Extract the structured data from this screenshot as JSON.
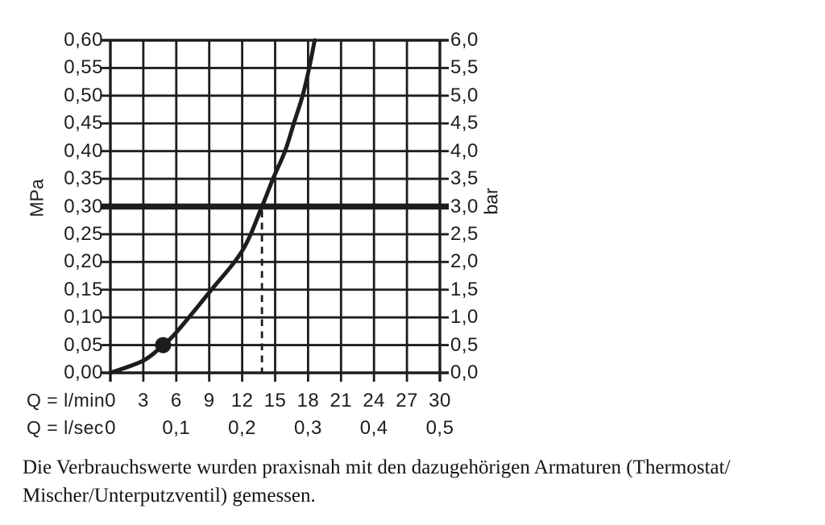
{
  "page": {
    "background": "#ffffff"
  },
  "colors": {
    "ink": "#1d1d1b",
    "caption_text": "#131313"
  },
  "chart_data": {
    "type": "line",
    "title": "",
    "grid": true,
    "x_axis": {
      "label_lmin": "Q = l/min",
      "label_lsec": "Q = l/sec",
      "range": [
        0,
        30
      ],
      "ticks_lmin": [
        0,
        3,
        6,
        9,
        12,
        15,
        18,
        21,
        24,
        27,
        30
      ],
      "tick_labels_lmin": [
        "0",
        "3",
        "6",
        "9",
        "12",
        "15",
        "18",
        "21",
        "24",
        "27",
        "30"
      ],
      "ticks_lsec": [
        {
          "label": "0",
          "q_lmin": 0
        },
        {
          "label": "0,1",
          "q_lmin": 6
        },
        {
          "label": "0,2",
          "q_lmin": 12
        },
        {
          "label": "0,3",
          "q_lmin": 18
        },
        {
          "label": "0,4",
          "q_lmin": 24
        },
        {
          "label": "0,5",
          "q_lmin": 30
        }
      ]
    },
    "y_left": {
      "label": "MPa",
      "range": [
        0,
        0.6
      ],
      "tick_labels": [
        "0,60",
        "0,55",
        "0,50",
        "0,45",
        "0,40",
        "0,35",
        "0,30",
        "0,25",
        "0,20",
        "0,15",
        "0,10",
        "0,05",
        "0,00"
      ]
    },
    "y_right": {
      "label": "bar",
      "range": [
        0,
        6
      ],
      "tick_labels": [
        "6,0",
        "5,5",
        "5,0",
        "4,5",
        "4,0",
        "3,5",
        "3,0",
        "2,5",
        "2,0",
        "1,5",
        "1,0",
        "0,5",
        "0,0"
      ]
    },
    "series": [
      {
        "name": "flow-rate-pressure-curve",
        "points": [
          [
            0,
            0
          ],
          [
            3,
            0.022
          ],
          [
            4.8,
            0.05
          ],
          [
            6,
            0.073
          ],
          [
            9,
            0.145
          ],
          [
            12,
            0.22
          ],
          [
            13.8,
            0.3
          ],
          [
            14.8,
            0.35
          ],
          [
            15.9,
            0.4
          ],
          [
            16.7,
            0.45
          ],
          [
            17.5,
            0.5
          ],
          [
            18.1,
            0.55
          ],
          [
            18.6,
            0.6
          ]
        ]
      }
    ],
    "marker_point": {
      "q_lmin": 4.8,
      "mpa": 0.05
    },
    "reference_line": {
      "mpa": 0.3,
      "bar": 3.0
    },
    "dashed_guide": {
      "q_lmin": 13.8
    }
  },
  "caption": {
    "line1": "Die Verbrauchswerte wurden praxisnah mit den dazugehörigen Armaturen (Thermostat/",
    "line2": "Mischer/Unterputzventil) gemessen."
  }
}
